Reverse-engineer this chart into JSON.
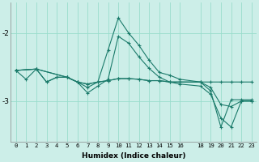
{
  "xlabel": "Humidex (Indice chaleur)",
  "ylabel": "",
  "bg_color": "#cceee8",
  "grid_color": "#99ddcc",
  "line_color": "#1a7a6a",
  "xlim": [
    -0.5,
    23.5
  ],
  "ylim": [
    -3.6,
    -1.55
  ],
  "yticks": [
    -3,
    -2
  ],
  "xticks": [
    0,
    1,
    2,
    3,
    4,
    5,
    6,
    7,
    8,
    9,
    10,
    11,
    12,
    13,
    14,
    15,
    16,
    18,
    19,
    20,
    21,
    22,
    23
  ],
  "lines": [
    {
      "x": [
        0,
        1,
        2,
        3,
        4,
        5,
        6,
        7,
        8,
        9,
        10,
        11,
        12,
        13,
        14,
        15,
        16,
        18,
        19,
        20,
        21,
        22,
        23
      ],
      "y": [
        -2.55,
        -2.68,
        -2.53,
        -2.72,
        -2.65,
        -2.65,
        -2.72,
        -2.8,
        -2.72,
        -2.25,
        -1.78,
        -2.0,
        -2.18,
        -2.4,
        -2.58,
        -2.62,
        -2.68,
        -2.72,
        -2.8,
        -3.05,
        -3.08,
        -3.0,
        -3.0
      ]
    },
    {
      "x": [
        0,
        2,
        3,
        4,
        5,
        6,
        7,
        8,
        9,
        10,
        11,
        12,
        13,
        14,
        15,
        16,
        18,
        19,
        20,
        21,
        22,
        23
      ],
      "y": [
        -2.55,
        -2.53,
        -2.72,
        -2.65,
        -2.65,
        -2.72,
        -2.88,
        -2.78,
        -2.68,
        -2.05,
        -2.15,
        -2.35,
        -2.52,
        -2.65,
        -2.72,
        -2.75,
        -2.78,
        -2.9,
        -3.25,
        -3.38,
        -3.0,
        -3.0
      ]
    },
    {
      "x": [
        0,
        2,
        5,
        6,
        7,
        8,
        9,
        10,
        11,
        12,
        13,
        14,
        15,
        16,
        18,
        19,
        20,
        21,
        22,
        23
      ],
      "y": [
        -2.55,
        -2.53,
        -2.65,
        -2.72,
        -2.75,
        -2.72,
        -2.7,
        -2.67,
        -2.67,
        -2.68,
        -2.7,
        -2.7,
        -2.72,
        -2.72,
        -2.72,
        -2.72,
        -2.72,
        -2.72,
        -2.72,
        -2.72
      ]
    },
    {
      "x": [
        0,
        2,
        5,
        6,
        7,
        8,
        9,
        10,
        11,
        12,
        13,
        14,
        15,
        16,
        18,
        19,
        20,
        21,
        22,
        23
      ],
      "y": [
        -2.55,
        -2.53,
        -2.65,
        -2.72,
        -2.75,
        -2.72,
        -2.7,
        -2.67,
        -2.67,
        -2.68,
        -2.7,
        -2.7,
        -2.72,
        -2.72,
        -2.72,
        -2.85,
        -3.38,
        -2.98,
        -2.98,
        -2.98
      ]
    }
  ]
}
